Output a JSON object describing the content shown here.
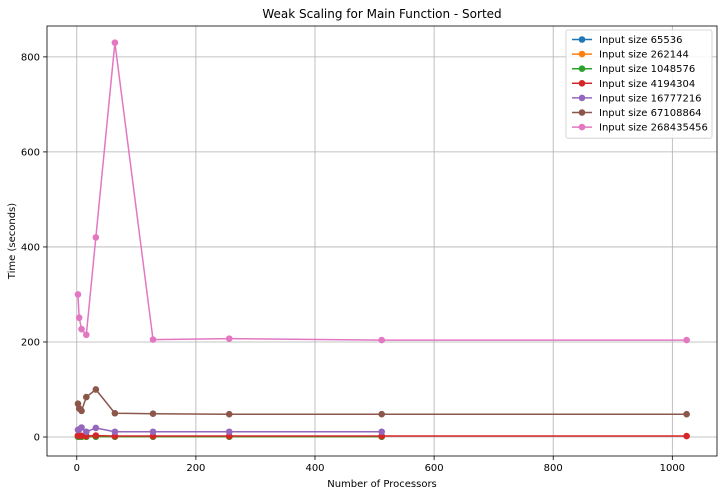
{
  "chart_data": {
    "type": "line",
    "title": "Weak Scaling for Main Function - Sorted",
    "xlabel": "Number of Processors",
    "ylabel": "Time (seconds)",
    "xlim": [
      -50,
      1075
    ],
    "ylim": [
      -40,
      865
    ],
    "xticks": [
      0,
      200,
      400,
      600,
      800,
      1000
    ],
    "yticks": [
      0,
      200,
      400,
      600,
      800
    ],
    "grid": true,
    "legend_position": "top-right",
    "series": [
      {
        "name": "Input size 65536",
        "color": "#1f77b4",
        "x": [
          2,
          4,
          8,
          16,
          32,
          64,
          128,
          256,
          512
        ],
        "y": [
          0.5,
          0.4,
          0.4,
          0.5,
          0.6,
          0.6,
          0.6,
          0.6,
          0.6
        ]
      },
      {
        "name": "Input size 262144",
        "color": "#ff7f0e",
        "x": [
          2,
          4,
          8,
          16,
          32,
          64,
          128,
          256,
          512
        ],
        "y": [
          0.6,
          0.5,
          0.5,
          0.5,
          0.6,
          0.6,
          0.6,
          0.6,
          0.7
        ]
      },
      {
        "name": "Input size 1048576",
        "color": "#2ca02c",
        "x": [
          2,
          4,
          8,
          16,
          32,
          64,
          128,
          256,
          512
        ],
        "y": [
          0.9,
          0.8,
          0.8,
          0.8,
          0.8,
          0.8,
          0.8,
          0.8,
          0.8
        ]
      },
      {
        "name": "Input size 4194304",
        "color": "#d62728",
        "x": [
          2,
          4,
          8,
          16,
          32,
          64,
          128,
          256,
          512,
          1024
        ],
        "y": [
          3,
          2.5,
          2.5,
          2,
          3,
          2,
          2,
          2,
          2,
          2
        ]
      },
      {
        "name": "Input size 16777216",
        "color": "#9467bd",
        "x": [
          2,
          4,
          8,
          16,
          32,
          64,
          128,
          256,
          512
        ],
        "y": [
          15,
          16,
          20,
          11,
          19,
          11,
          11,
          11,
          11
        ]
      },
      {
        "name": "Input size 67108864",
        "color": "#8c564b",
        "x": [
          2,
          4,
          8,
          16,
          32,
          64,
          128,
          256,
          512,
          1024
        ],
        "y": [
          70,
          60,
          55,
          84,
          100,
          50,
          49,
          48,
          48,
          48
        ]
      },
      {
        "name": "Input size 268435456",
        "color": "#e377c2",
        "x": [
          2,
          4,
          8,
          16,
          32,
          64,
          128,
          256,
          512,
          1024
        ],
        "y": [
          300,
          251,
          227,
          215,
          420,
          830,
          205,
          207,
          204,
          204
        ]
      }
    ]
  }
}
